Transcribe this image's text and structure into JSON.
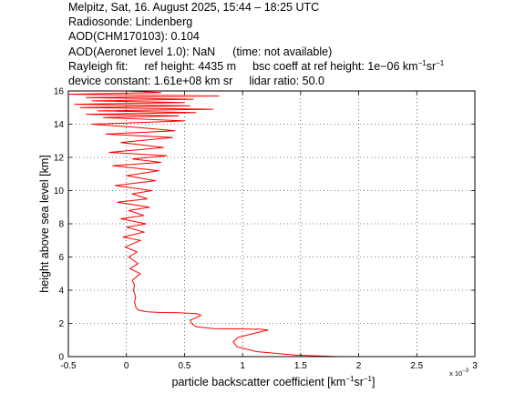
{
  "header": {
    "line1": "Melpitz, Sat, 16. August 2025, 15:44 – 18:25 UTC",
    "line2": "Radiosonde: Lindenberg",
    "line3": "AOD(CHM170103): 0.104",
    "line4_a": "AOD(Aeronet level 1.0): NaN",
    "line4_b": "(time: not available)",
    "line5_a": "Rayleigh fit:",
    "line5_b": "ref height: 4435 m",
    "line5_c": "bsc coeff at ref height: 1e−06 km",
    "line5_c_exp1": "−1",
    "line5_c_sr": "sr",
    "line5_c_exp2": "−1",
    "line6_a": "device constant: 1.61e+08 km sr",
    "line6_b": "lidar ratio: 50.0"
  },
  "chart_data": {
    "type": "line",
    "xlabel": "particle backscatter coefficient [km",
    "xlabel_exp1": "−1",
    "xlabel_mid": "sr",
    "xlabel_exp2": "−1",
    "xlabel_end": "]",
    "ylabel": "height above sea level [km]",
    "x_multiplier": "x 10",
    "x_multiplier_exp": "−3",
    "xlim": [
      -0.5,
      3
    ],
    "ylim": [
      0,
      16
    ],
    "xticks": [
      "-0.5",
      "0",
      "0.5",
      "1",
      "1.5",
      "2",
      "2.5",
      "3"
    ],
    "yticks": [
      "0",
      "2",
      "4",
      "6",
      "8",
      "10",
      "12",
      "14",
      "16"
    ],
    "grid": true,
    "series": [
      {
        "color": "#ff0000",
        "x": [
          1.82,
          1.45,
          1.12,
          0.95,
          0.92,
          0.96,
          1.1,
          1.22,
          1.15,
          0.75,
          0.6,
          0.56,
          0.55,
          0.62,
          0.64,
          0.6,
          0.52,
          0.45,
          0.3,
          0.18,
          0.1,
          0.08,
          0.07,
          0.08,
          0.06,
          0.07,
          0.05,
          0.12,
          0.03,
          0.1,
          0.02,
          0.09,
          -0.01,
          0.12,
          -0.03,
          0.15,
          0.0,
          0.17,
          -0.05,
          0.15,
          0.02,
          0.2,
          -0.08,
          0.18,
          0.05,
          0.22,
          -0.1,
          0.25,
          0.0,
          0.28,
          -0.12,
          0.3,
          0.05,
          0.35,
          -0.15,
          0.32,
          -0.05,
          0.4,
          -0.18,
          0.42,
          0.1,
          -0.3,
          0.5,
          -0.2,
          0.45,
          -0.35,
          0.6,
          -0.25,
          0.75,
          -0.4,
          0.55,
          -0.45,
          0.5,
          -0.3,
          0.58,
          -0.35,
          0.8,
          -0.5,
          0.3,
          0.0
        ],
        "y": [
          0.0,
          0.1,
          0.3,
          0.6,
          0.9,
          1.15,
          1.4,
          1.6,
          1.65,
          1.68,
          1.8,
          2.0,
          2.2,
          2.4,
          2.5,
          2.6,
          2.62,
          2.64,
          2.66,
          2.7,
          2.8,
          3.0,
          3.3,
          3.6,
          4.0,
          4.3,
          4.6,
          5.0,
          5.3,
          5.6,
          6.0,
          6.3,
          6.6,
          7.0,
          7.2,
          7.5,
          7.8,
          8.0,
          8.3,
          8.5,
          8.8,
          9.0,
          9.3,
          9.5,
          9.8,
          10.0,
          10.3,
          10.6,
          10.9,
          11.2,
          11.5,
          11.7,
          11.9,
          12.1,
          12.3,
          12.6,
          12.9,
          13.2,
          13.4,
          13.6,
          13.8,
          14.0,
          14.2,
          14.4,
          14.5,
          14.6,
          14.7,
          14.8,
          14.9,
          15.0,
          15.1,
          15.2,
          15.3,
          15.4,
          15.5,
          15.6,
          15.7,
          15.8,
          15.9,
          16.0
        ]
      }
    ]
  }
}
